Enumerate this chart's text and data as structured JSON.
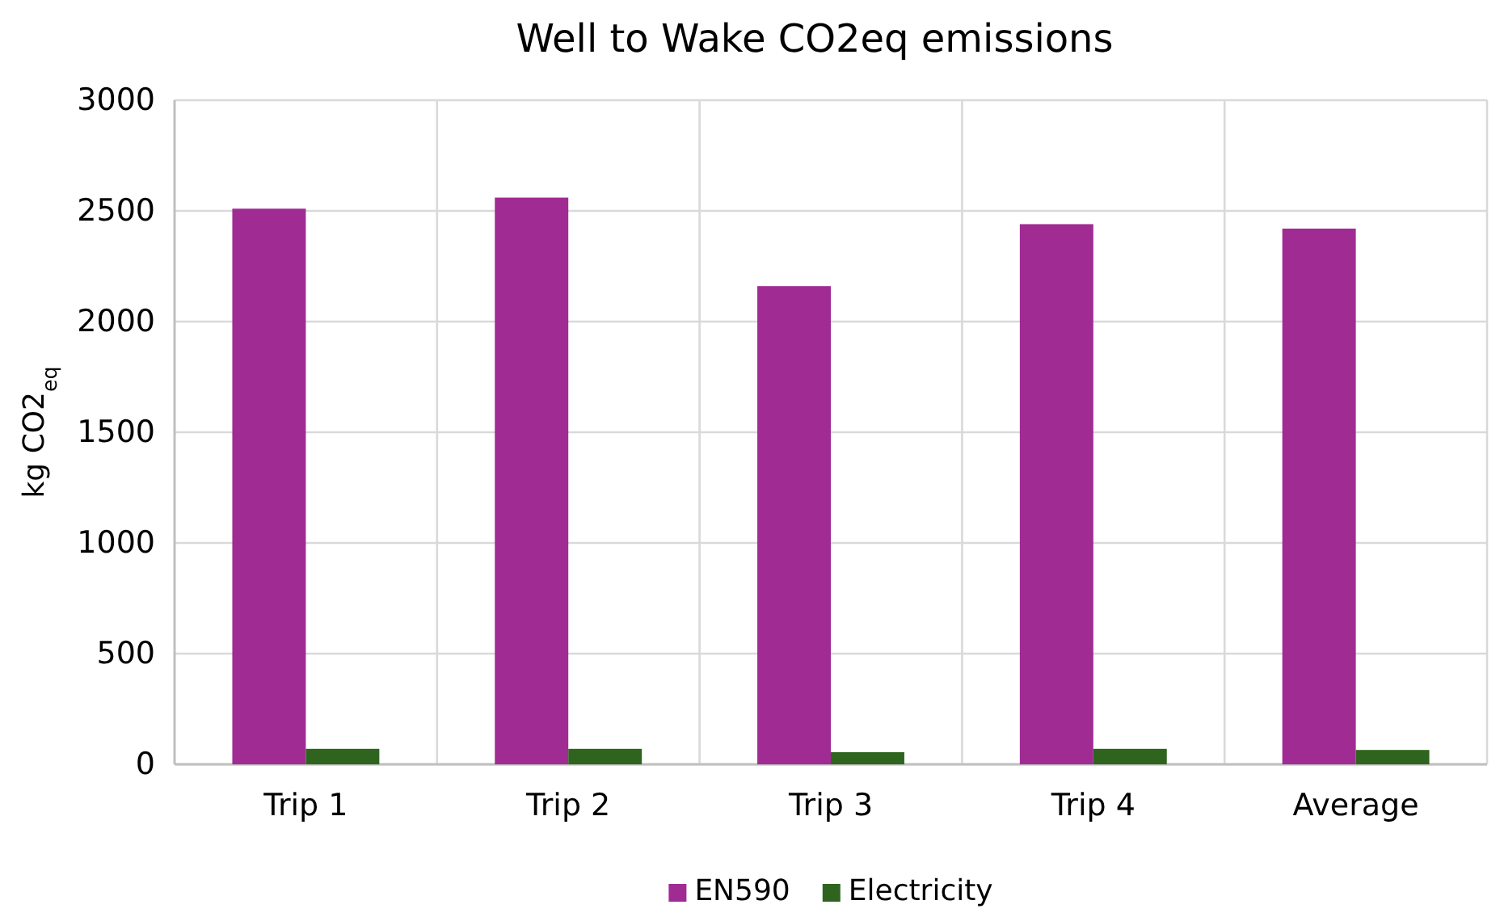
{
  "chart_data": {
    "type": "bar",
    "title": "Well to Wake CO2eq emissions",
    "ylabel": "kg CO2$_{eq}$",
    "categories": [
      "Trip 1",
      "Trip 2",
      "Trip 3",
      "Trip 4",
      "Average"
    ],
    "series": [
      {
        "name": "EN590",
        "color": "#a02b93",
        "values": [
          2510,
          2560,
          2160,
          2440,
          2420
        ]
      },
      {
        "name": "Electricity",
        "color": "#2f641e",
        "values": [
          70,
          70,
          55,
          70,
          65
        ]
      }
    ],
    "ylim": [
      0,
      3000
    ],
    "yticks": [
      0,
      500,
      1000,
      1500,
      2000,
      2500,
      3000
    ],
    "grid": true,
    "legend": "bottom"
  }
}
